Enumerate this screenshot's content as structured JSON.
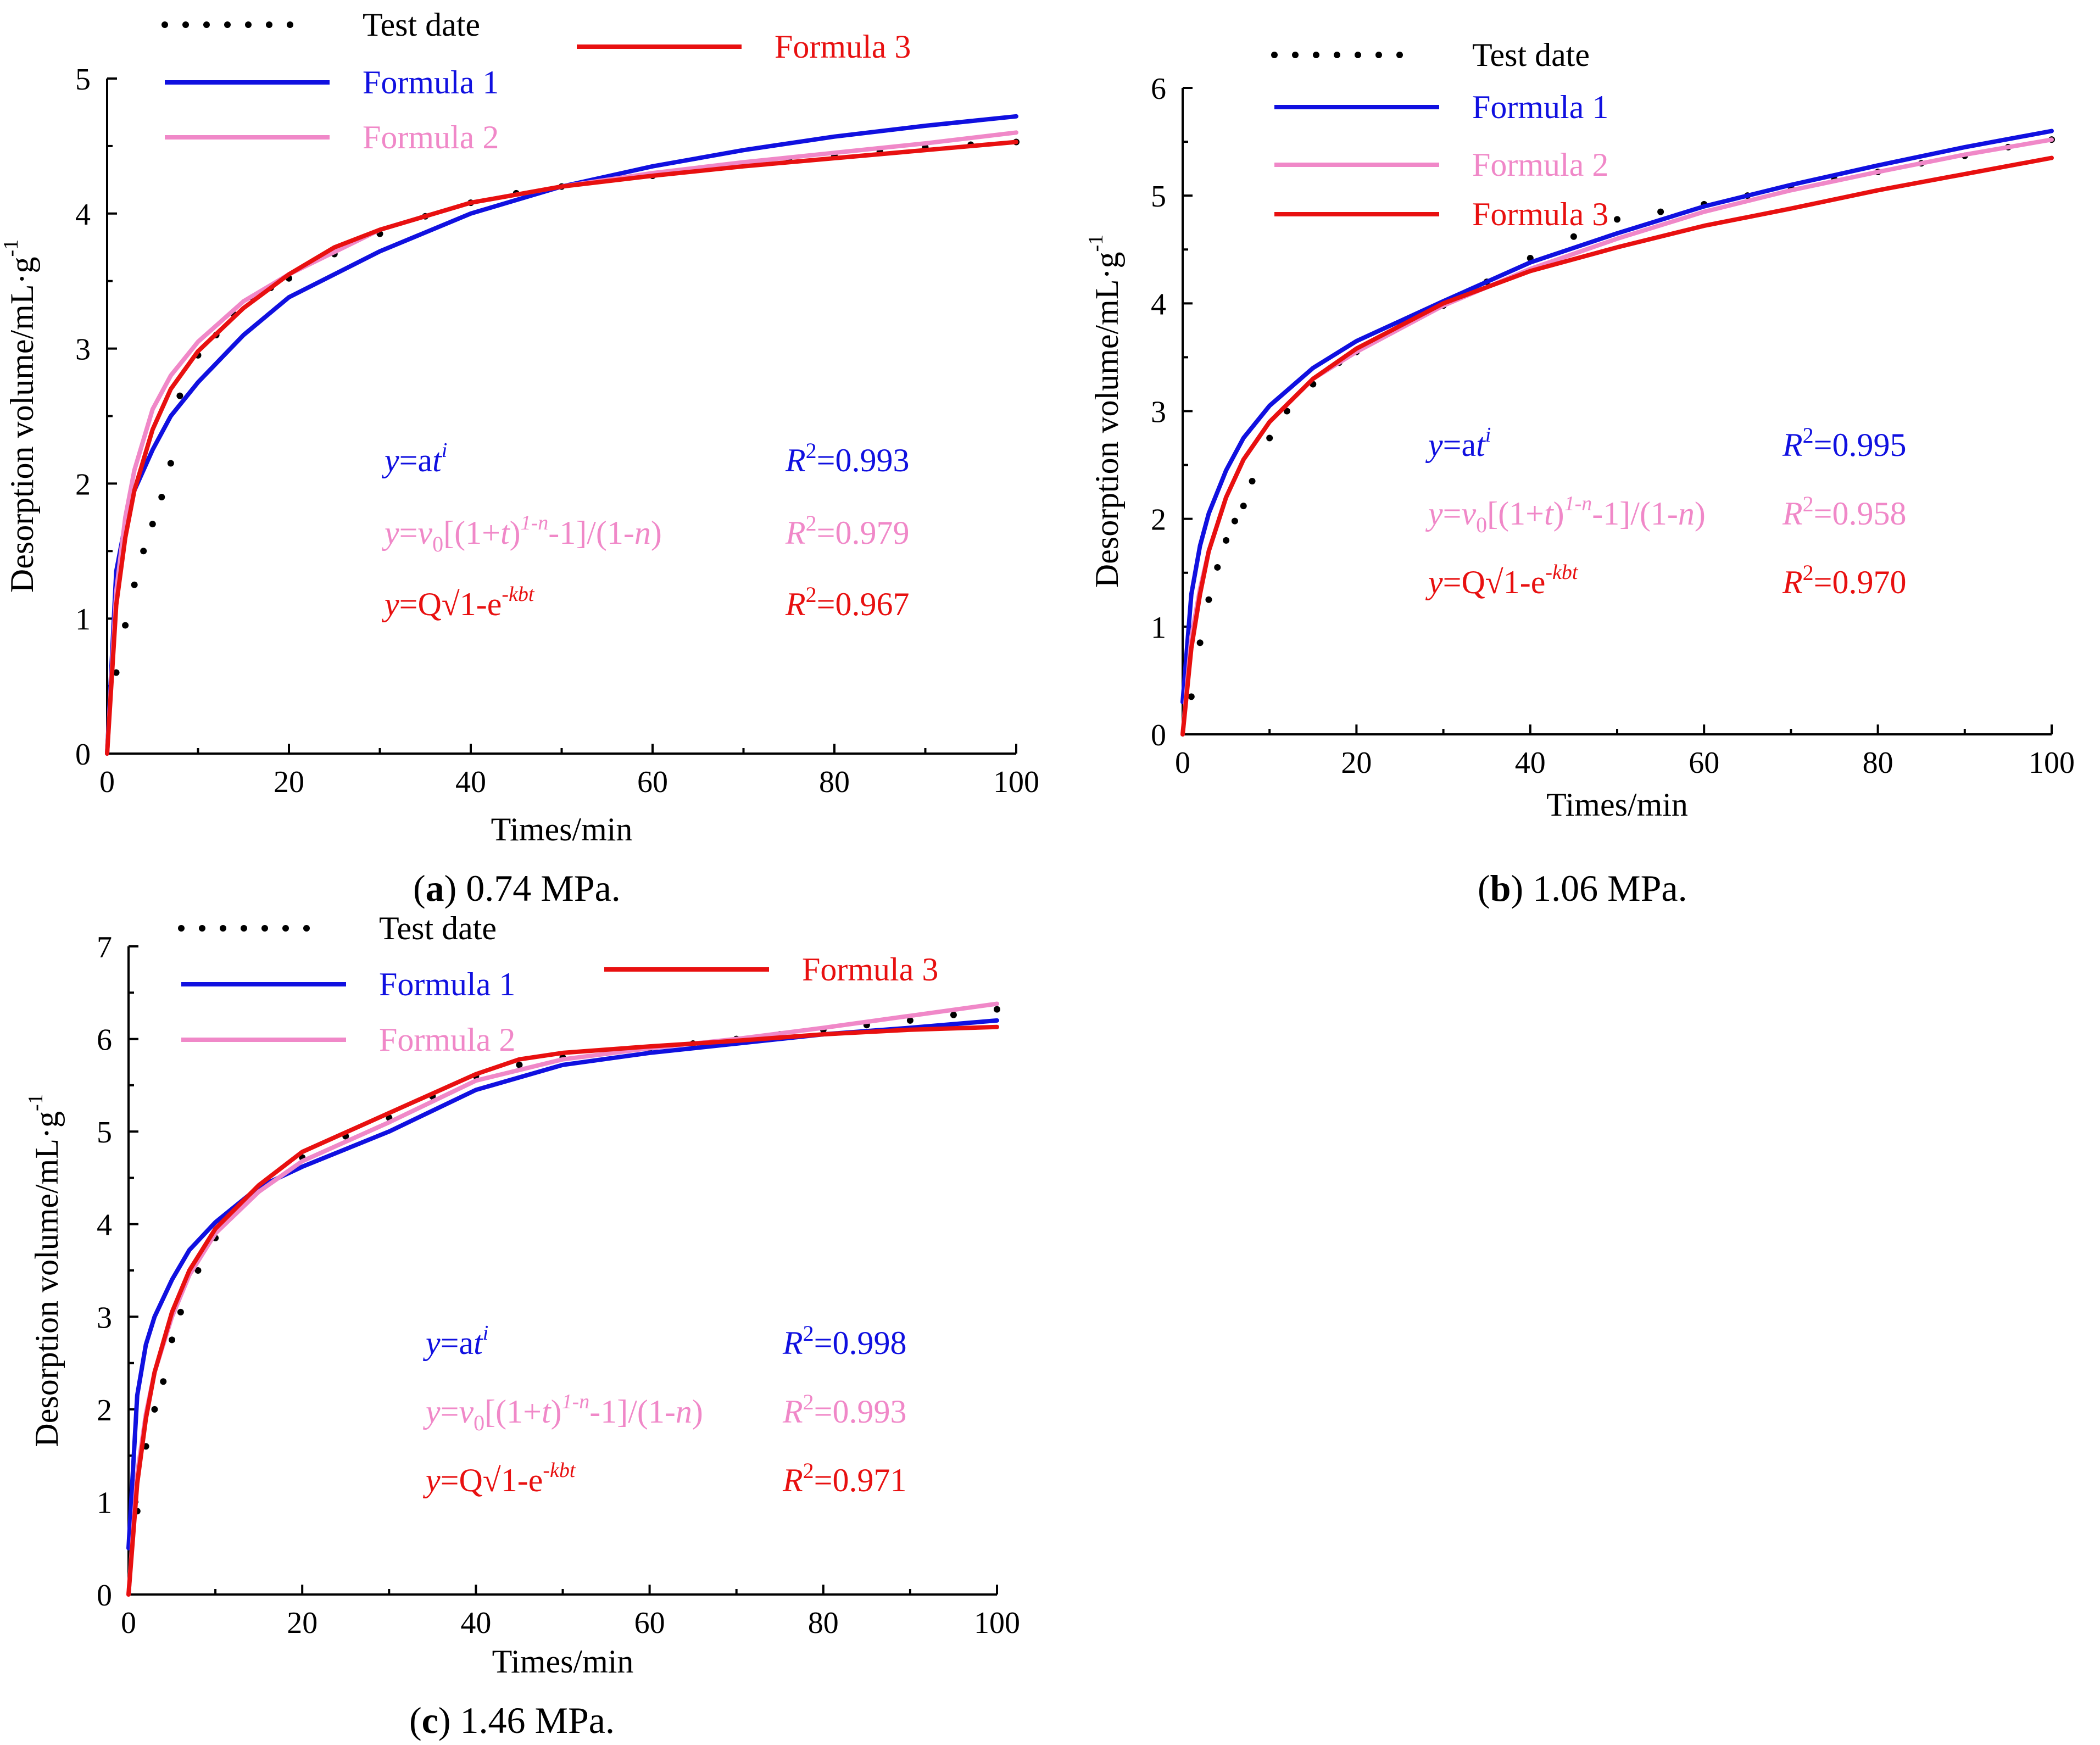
{
  "colors": {
    "test": "#000000",
    "f1": "#1010e0",
    "f2": "#f088c8",
    "f3": "#e81010"
  },
  "legend_labels": {
    "test": "Test date",
    "f1": "Formula  1",
    "f2": "Formula  2",
    "f3": "Formula  3"
  },
  "equations": {
    "f1": "y=at^i",
    "f2": "y=v0[(1+t)^(1-n)-1]/(1-n)",
    "f3": "y=Q√1-e^(-kbt)"
  },
  "chart_data": [
    {
      "id": "a",
      "type": "line",
      "caption_letter": "a",
      "caption_text": " 0.74 MPa.",
      "xlabel": "Times/min",
      "ylabel": "Desorption volume/mL·g",
      "ylabel_sup": "-1",
      "xlim": [
        0,
        100
      ],
      "ylim": [
        0,
        5
      ],
      "xticks": [
        "0",
        "20",
        "40",
        "60",
        "80",
        "100"
      ],
      "yticks": [
        "0",
        "1",
        "2",
        "3",
        "4",
        "5"
      ],
      "r2": {
        "f1": "=0.993",
        "f2": "=0.979",
        "f3": "=0.967"
      },
      "series": [
        {
          "name": "Test date",
          "key": "test",
          "x": [
            1,
            2,
            3,
            4,
            5,
            6,
            7,
            8,
            10,
            12,
            14,
            16,
            18,
            20,
            25,
            30,
            35,
            40,
            45,
            50,
            55,
            60,
            65,
            70,
            75,
            80,
            85,
            90,
            95,
            100
          ],
          "y": [
            0.6,
            0.95,
            1.25,
            1.5,
            1.7,
            1.9,
            2.15,
            2.65,
            2.95,
            3.1,
            3.25,
            3.38,
            3.45,
            3.52,
            3.7,
            3.85,
            3.98,
            4.08,
            4.15,
            4.2,
            4.25,
            4.28,
            4.33,
            4.37,
            4.4,
            4.43,
            4.46,
            4.49,
            4.51,
            4.53
          ]
        },
        {
          "name": "Formula  1",
          "key": "f1",
          "x": [
            0,
            1,
            2,
            3,
            5,
            7,
            10,
            15,
            20,
            30,
            40,
            50,
            60,
            70,
            80,
            90,
            100
          ],
          "y": [
            0,
            1.35,
            1.7,
            1.95,
            2.25,
            2.5,
            2.75,
            3.1,
            3.38,
            3.72,
            4.0,
            4.2,
            4.35,
            4.47,
            4.57,
            4.65,
            4.72
          ]
        },
        {
          "name": "Formula  2",
          "key": "f2",
          "x": [
            0,
            1,
            2,
            3,
            5,
            7,
            10,
            15,
            20,
            30,
            40,
            50,
            60,
            70,
            80,
            90,
            100
          ],
          "y": [
            0,
            1.2,
            1.75,
            2.1,
            2.55,
            2.8,
            3.05,
            3.35,
            3.55,
            3.88,
            4.08,
            4.2,
            4.3,
            4.38,
            4.45,
            4.52,
            4.6
          ]
        },
        {
          "name": "Formula  3",
          "key": "f3",
          "x": [
            0,
            1,
            2,
            3,
            5,
            7,
            10,
            15,
            20,
            25,
            30,
            40,
            50,
            60,
            70,
            80,
            90,
            100
          ],
          "y": [
            0,
            1.1,
            1.6,
            1.95,
            2.4,
            2.7,
            2.98,
            3.3,
            3.55,
            3.75,
            3.88,
            4.08,
            4.2,
            4.28,
            4.35,
            4.41,
            4.47,
            4.53
          ]
        }
      ]
    },
    {
      "id": "b",
      "type": "line",
      "caption_letter": "b",
      "caption_text": " 1.06 MPa.",
      "xlabel": "Times/min",
      "ylabel": "Desorption volume/mL·g",
      "ylabel_sup": "-1",
      "xlim": [
        0,
        100
      ],
      "ylim": [
        0,
        6
      ],
      "xticks": [
        "0",
        "20",
        "40",
        "60",
        "80",
        "100"
      ],
      "yticks": [
        "0",
        "1",
        "2",
        "3",
        "4",
        "5",
        "6"
      ],
      "r2": {
        "f1": "=0.995",
        "f2": "=0.958",
        "f3": "=0.970"
      },
      "series": [
        {
          "name": "Test date",
          "key": "test",
          "x": [
            1,
            2,
            3,
            4,
            5,
            6,
            7,
            8,
            10,
            12,
            15,
            18,
            20,
            25,
            30,
            35,
            40,
            45,
            50,
            55,
            60,
            65,
            70,
            75,
            80,
            85,
            90,
            95,
            100
          ],
          "y": [
            0.35,
            0.85,
            1.25,
            1.55,
            1.8,
            1.98,
            2.12,
            2.35,
            2.75,
            3.0,
            3.25,
            3.45,
            3.55,
            3.78,
            3.98,
            4.2,
            4.42,
            4.62,
            4.78,
            4.85,
            4.92,
            5.0,
            5.08,
            5.15,
            5.22,
            5.3,
            5.37,
            5.45,
            5.52
          ]
        },
        {
          "name": "Formula  1",
          "key": "f1",
          "x": [
            0,
            1,
            2,
            3,
            5,
            7,
            10,
            15,
            20,
            30,
            40,
            50,
            60,
            70,
            80,
            90,
            100
          ],
          "y": [
            0.3,
            1.3,
            1.75,
            2.05,
            2.45,
            2.75,
            3.05,
            3.4,
            3.65,
            4.02,
            4.38,
            4.65,
            4.9,
            5.1,
            5.28,
            5.45,
            5.6
          ]
        },
        {
          "name": "Formula  2",
          "key": "f2",
          "x": [
            0,
            1,
            2,
            3,
            5,
            7,
            10,
            15,
            20,
            30,
            40,
            50,
            60,
            70,
            80,
            90,
            100
          ],
          "y": [
            0,
            0.9,
            1.35,
            1.7,
            2.2,
            2.55,
            2.9,
            3.3,
            3.55,
            3.98,
            4.32,
            4.6,
            4.85,
            5.05,
            5.22,
            5.38,
            5.52
          ]
        },
        {
          "name": "Formula  3",
          "key": "f3",
          "x": [
            0,
            1,
            2,
            3,
            5,
            7,
            10,
            15,
            20,
            30,
            40,
            50,
            60,
            70,
            80,
            90,
            100
          ],
          "y": [
            0,
            0.8,
            1.3,
            1.7,
            2.2,
            2.55,
            2.9,
            3.3,
            3.58,
            4.0,
            4.3,
            4.52,
            4.72,
            4.88,
            5.05,
            5.2,
            5.35
          ]
        }
      ]
    },
    {
      "id": "c",
      "type": "line",
      "caption_letter": "c",
      "caption_text": " 1.46 MPa.",
      "xlabel": "Times/min",
      "ylabel": "Desorption volume/mL·g",
      "ylabel_sup": "-1",
      "xlim": [
        0,
        100
      ],
      "ylim": [
        0,
        7
      ],
      "xticks": [
        "0",
        "20",
        "40",
        "60",
        "80",
        "100"
      ],
      "yticks": [
        "0",
        "1",
        "2",
        "3",
        "4",
        "5",
        "6",
        "7"
      ],
      "r2": {
        "f1": "=0.998",
        "f2": "=0.993",
        "f3": "=0.971"
      },
      "series": [
        {
          "name": "Test date",
          "key": "test",
          "x": [
            1,
            2,
            3,
            4,
            5,
            6,
            8,
            10,
            12,
            15,
            20,
            25,
            30,
            35,
            40,
            45,
            50,
            55,
            60,
            65,
            70,
            75,
            80,
            85,
            90,
            95,
            100
          ],
          "y": [
            0.9,
            1.6,
            2.0,
            2.3,
            2.75,
            3.05,
            3.5,
            3.85,
            4.15,
            4.4,
            4.72,
            4.95,
            5.15,
            5.38,
            5.6,
            5.72,
            5.8,
            5.85,
            5.9,
            5.95,
            6.0,
            6.05,
            6.1,
            6.15,
            6.2,
            6.26,
            6.32
          ]
        },
        {
          "name": "Formula  1",
          "key": "f1",
          "x": [
            0,
            1,
            2,
            3,
            5,
            7,
            10,
            15,
            20,
            30,
            40,
            50,
            60,
            70,
            80,
            90,
            100
          ],
          "y": [
            0.5,
            2.15,
            2.7,
            3.0,
            3.4,
            3.72,
            4.02,
            4.4,
            4.62,
            5.0,
            5.45,
            5.72,
            5.85,
            5.95,
            6.05,
            6.12,
            6.2
          ]
        },
        {
          "name": "Formula  2",
          "key": "f2",
          "x": [
            0,
            1,
            2,
            3,
            5,
            7,
            10,
            15,
            20,
            30,
            40,
            50,
            60,
            70,
            80,
            90,
            100
          ],
          "y": [
            0,
            1.3,
            1.95,
            2.4,
            3.0,
            3.45,
            3.9,
            4.35,
            4.68,
            5.1,
            5.55,
            5.78,
            5.9,
            6.0,
            6.12,
            6.25,
            6.38
          ]
        },
        {
          "name": "Formula  3",
          "key": "f3",
          "x": [
            0,
            1,
            2,
            3,
            5,
            7,
            10,
            15,
            20,
            30,
            40,
            45,
            50,
            60,
            70,
            80,
            90,
            100
          ],
          "y": [
            0,
            1.2,
            1.9,
            2.4,
            3.05,
            3.5,
            3.95,
            4.42,
            4.78,
            5.2,
            5.62,
            5.78,
            5.85,
            5.92,
            5.98,
            6.05,
            6.1,
            6.13
          ]
        }
      ]
    }
  ]
}
